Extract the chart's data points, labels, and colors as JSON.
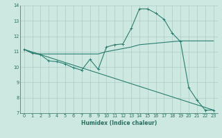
{
  "xlabel": "Humidex (Indice chaleur)",
  "bg_color": "#cce8e0",
  "grid_color": "#aaccc4",
  "line_color": "#2a7d6f",
  "plot_bg": "#cce8e0",
  "xlim": [
    -0.5,
    23.5
  ],
  "ylim": [
    7,
    14
  ],
  "xtick_labels": [
    "0",
    "1",
    "2",
    "3",
    "4",
    "5",
    "6",
    "7",
    "8",
    "9",
    "10",
    "11",
    "12",
    "13",
    "14",
    "15",
    "16",
    "17",
    "18",
    "19",
    "20",
    "21",
    "22",
    "23"
  ],
  "xtick_vals": [
    0,
    1,
    2,
    3,
    4,
    5,
    6,
    7,
    8,
    9,
    10,
    11,
    12,
    13,
    14,
    15,
    16,
    17,
    18,
    19,
    20,
    21,
    22,
    23
  ],
  "ytick_vals": [
    7,
    8,
    9,
    10,
    11,
    12,
    13,
    14
  ],
  "series1_x": [
    0,
    1,
    2,
    3,
    4,
    5,
    6,
    7,
    8,
    9,
    10,
    11,
    12,
    13,
    14,
    15,
    16,
    17,
    18,
    19,
    20,
    21,
    22,
    23
  ],
  "series1_y": [
    11.15,
    10.9,
    10.8,
    10.4,
    10.35,
    10.2,
    9.95,
    9.8,
    10.5,
    9.85,
    11.3,
    11.45,
    11.5,
    12.5,
    13.78,
    13.78,
    13.5,
    13.1,
    12.2,
    11.65,
    8.65,
    7.85,
    7.2,
    7.2
  ],
  "series2_x": [
    0,
    1,
    2,
    3,
    4,
    5,
    6,
    7,
    8,
    9,
    10,
    11,
    12,
    13,
    14,
    15,
    16,
    17,
    18,
    19,
    20,
    21,
    22,
    23
  ],
  "series2_y": [
    11.15,
    10.9,
    10.85,
    10.85,
    10.85,
    10.85,
    10.85,
    10.85,
    10.85,
    10.85,
    11.0,
    11.1,
    11.2,
    11.3,
    11.45,
    11.5,
    11.55,
    11.6,
    11.65,
    11.7,
    11.7,
    11.7,
    11.7,
    11.7
  ],
  "series3_x": [
    0,
    23
  ],
  "series3_y": [
    11.15,
    7.2
  ],
  "tick_color": "#2a6e60",
  "label_fontsize": 5.5,
  "tick_fontsize": 4.8
}
